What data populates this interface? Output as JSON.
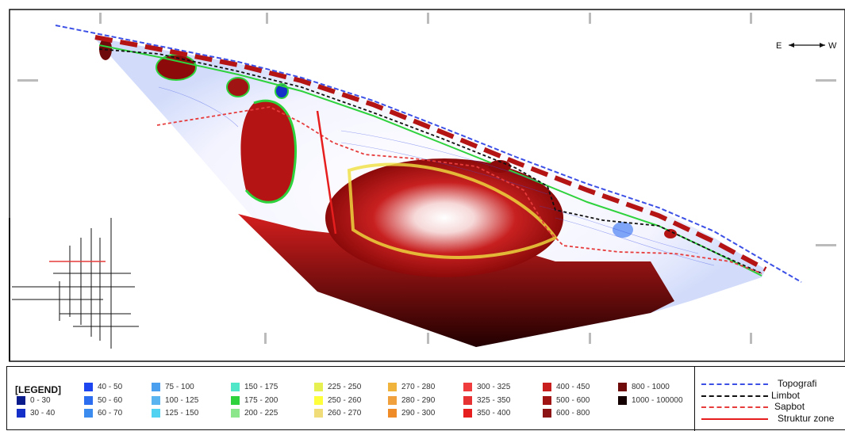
{
  "orientation": {
    "left": "E",
    "right": "W"
  },
  "legend": {
    "title": "[LEGEND]",
    "classes": [
      {
        "label": "0 - 30",
        "color": "#0a1c8c"
      },
      {
        "label": "30 - 40",
        "color": "#1430c8"
      },
      {
        "label": "40 - 50",
        "color": "#1e46f0"
      },
      {
        "label": "50 - 60",
        "color": "#2d6ef0"
      },
      {
        "label": "60 - 70",
        "color": "#3c8cf0"
      },
      {
        "label": "75 - 100",
        "color": "#4aa0ee"
      },
      {
        "label": "100 - 125",
        "color": "#5ab4f0"
      },
      {
        "label": "125 - 150",
        "color": "#50d2f0"
      },
      {
        "label": "150 - 175",
        "color": "#50e6c8"
      },
      {
        "label": "175 - 200",
        "color": "#2ed23c"
      },
      {
        "label": "200 - 225",
        "color": "#8ce68c"
      },
      {
        "label": "225 - 250",
        "color": "#e6f050"
      },
      {
        "label": "250 - 260",
        "color": "#ffff3c"
      },
      {
        "label": "260 - 270",
        "color": "#f0dc78"
      },
      {
        "label": "270 - 280",
        "color": "#f0b43c"
      },
      {
        "label": "280 - 290",
        "color": "#f0a03c"
      },
      {
        "label": "290 - 300",
        "color": "#f08c28"
      },
      {
        "label": "300 - 325",
        "color": "#f03c3c"
      },
      {
        "label": "325 - 350",
        "color": "#e63232"
      },
      {
        "label": "350 - 400",
        "color": "#e61e1e"
      },
      {
        "label": "400 - 450",
        "color": "#c81e1e"
      },
      {
        "label": "500 - 600",
        "color": "#a01414"
      },
      {
        "label": "600 - 800",
        "color": "#8c1414"
      },
      {
        "label": "800 - 1000",
        "color": "#6e0a0a"
      },
      {
        "label": "1000 - 100000",
        "color": "#140000"
      }
    ],
    "lines": [
      {
        "label": "Topografi",
        "color": "#3c50e6",
        "style": "dashed"
      },
      {
        "label": "Limbot",
        "color": "#111111",
        "style": "dashed"
      },
      {
        "label": "Sapbot",
        "color": "#e63c3c",
        "style": "dashed"
      },
      {
        "label": "Struktur zone",
        "color": "#e61e1e",
        "style": "solid"
      }
    ]
  }
}
